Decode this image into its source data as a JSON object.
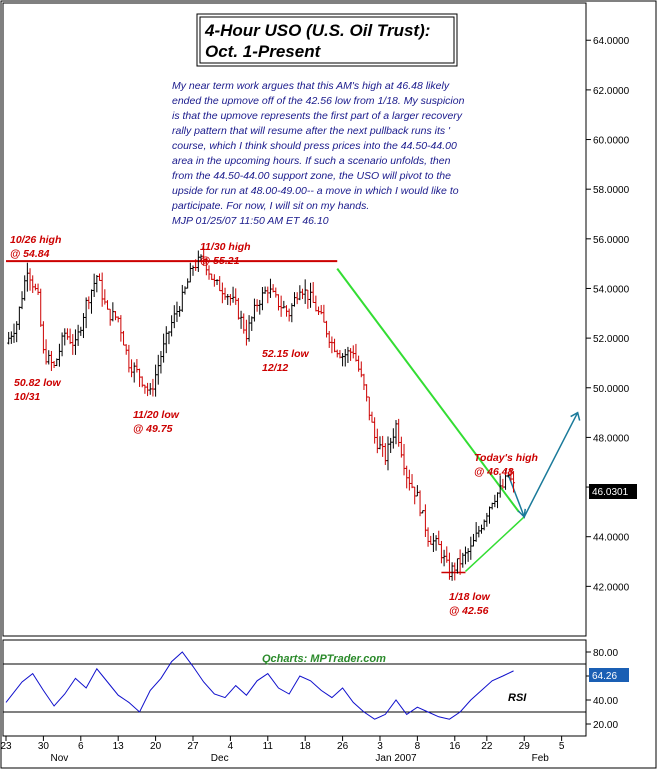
{
  "title": {
    "line1": "4-Hour USO (U.S. Oil Trust):",
    "line2": "Oct. 1-Present"
  },
  "commentary": [
    "My near term work argues that this AM's high at 46.48 likely",
    "ended the upmove off of the 42.56 low from 1/18.  My suspicion",
    "is that the upmove represents the first part of a larger recovery",
    "rally pattern that will resume after the next pullback runs its '",
    "course, which I think should press prices into the 44.50-44.00",
    "area in the upcoming hours. If such a scenario unfolds, then",
    "from the 44.50-44.00 support zone, the USO will pivot to the",
    "upside for run at 48.00-49.00-- a move in which I would like to",
    "participate.  For now, I will sit on my hands.",
    "MJP  01/25/07 11:50 AM ET  46.10"
  ],
  "annotations": [
    {
      "id": "oct26",
      "line1": "10/26 high",
      "line2": "@ 54.84"
    },
    {
      "id": "oct31",
      "line1": "50.82 low",
      "line2": "10/31"
    },
    {
      "id": "nov20",
      "line1": "11/20 low",
      "line2": "@ 49.75"
    },
    {
      "id": "nov30",
      "line1": "11/30 high",
      "line2": "@ 55.21"
    },
    {
      "id": "dec12",
      "line1": "52.15 low",
      "line2": "12/12"
    },
    {
      "id": "today",
      "line1": "Today's high",
      "line2": "@ 46.48"
    },
    {
      "id": "jan18",
      "line1": "1/18 low",
      "line2": "@ 42.56"
    }
  ],
  "credit": "Qcharts: MPTrader.com",
  "last_price": "46.0301",
  "rsi_label": "RSI",
  "rsi_value": "64.26",
  "colors": {
    "up_bar": "#000000",
    "down_bar": "#cc0000",
    "resistance": "#cc0000",
    "trendline": "#33dd33",
    "projection": "#1a7a9a",
    "rsi_line": "#1010cc",
    "badge_bg": "#000000",
    "rsi_badge_bg": "#1a5fb4"
  },
  "chart_data": [
    {
      "type": "ohlc",
      "ylim": [
        40.0,
        65.5
      ],
      "yticks": [
        "42.0000",
        "44.0000",
        "46.0000",
        "48.0000",
        "50.0000",
        "52.0000",
        "54.0000",
        "56.0000",
        "58.0000",
        "60.0000",
        "62.0000",
        "64.0000"
      ],
      "yticks_num": [
        42,
        44,
        46,
        48,
        50,
        52,
        54,
        56,
        58,
        60,
        62,
        64
      ],
      "xticks": [
        {
          "label": "23",
          "day": 0
        },
        {
          "label": "30",
          "day": 7
        },
        {
          "label": "6",
          "day": 14
        },
        {
          "label": "13",
          "day": 21
        },
        {
          "label": "20",
          "day": 28
        },
        {
          "label": "27",
          "day": 35
        },
        {
          "label": "4",
          "day": 42
        },
        {
          "label": "11",
          "day": 49
        },
        {
          "label": "18",
          "day": 56
        },
        {
          "label": "26",
          "day": 63
        },
        {
          "label": "3",
          "day": 70
        },
        {
          "label": "8",
          "day": 77
        },
        {
          "label": "16",
          "day": 84
        },
        {
          "label": "22",
          "day": 90
        },
        {
          "label": "29",
          "day": 97
        },
        {
          "label": "5",
          "day": 104
        }
      ],
      "months": [
        {
          "label": "Nov",
          "day": 10
        },
        {
          "label": "Dec",
          "day": 40
        },
        {
          "label": "Jan 2007",
          "day": 73
        },
        {
          "label": "Feb",
          "day": 100
        }
      ],
      "xlim": [
        0,
        108
      ],
      "price_path": [
        [
          0,
          51.8
        ],
        [
          2,
          52.6
        ],
        [
          4,
          54.84
        ],
        [
          6,
          53.6
        ],
        [
          7,
          51.4
        ],
        [
          9,
          50.82
        ],
        [
          11,
          52.2
        ],
        [
          13,
          51.7
        ],
        [
          15,
          53.4
        ],
        [
          17,
          54.5
        ],
        [
          19,
          53.0
        ],
        [
          21,
          52.8
        ],
        [
          23,
          51.0
        ],
        [
          25,
          50.5
        ],
        [
          27,
          49.75
        ],
        [
          29,
          51.3
        ],
        [
          31,
          52.6
        ],
        [
          33,
          53.6
        ],
        [
          35,
          54.9
        ],
        [
          37,
          55.21
        ],
        [
          39,
          54.2
        ],
        [
          41,
          53.9
        ],
        [
          43,
          53.3
        ],
        [
          45,
          52.15
        ],
        [
          47,
          53.4
        ],
        [
          49,
          54.0
        ],
        [
          51,
          53.4
        ],
        [
          53,
          53.0
        ],
        [
          55,
          54.1
        ],
        [
          57,
          53.6
        ],
        [
          59,
          52.8
        ],
        [
          61,
          51.8
        ],
        [
          63,
          51.3
        ],
        [
          65,
          51.5
        ],
        [
          67,
          50.0
        ],
        [
          69,
          48.0
        ],
        [
          71,
          47.2
        ],
        [
          73,
          48.5
        ],
        [
          75,
          46.5
        ],
        [
          77,
          45.6
        ],
        [
          79,
          44.0
        ],
        [
          81,
          43.6
        ],
        [
          83,
          42.56
        ],
        [
          85,
          43.0
        ],
        [
          87,
          43.5
        ],
        [
          89,
          44.5
        ],
        [
          91,
          45.5
        ],
        [
          93,
          46.0
        ],
        [
          94,
          46.48
        ],
        [
          95,
          46.03
        ]
      ],
      "resistance_line": {
        "x0": 0,
        "x1": 62,
        "y": 55.1
      },
      "trendline": {
        "x0": 62,
        "y0": 54.8,
        "x1": 96,
        "y1": 45.0
      },
      "support_trend": {
        "x0": 86,
        "y0": 42.6,
        "x1": 97,
        "y1": 44.8
      },
      "projection": [
        [
          94,
          46.5
        ],
        [
          97,
          44.8
        ],
        [
          107,
          49.0
        ]
      ]
    },
    {
      "type": "line",
      "name": "RSI",
      "ylim": [
        10,
        90
      ],
      "yticks": [
        "20.00",
        "40.00",
        "60.00",
        "80.00"
      ],
      "yticks_num": [
        20,
        40,
        60,
        80
      ],
      "hlines": [
        30,
        70
      ],
      "x": [
        0,
        3,
        5,
        7,
        9,
        11,
        13,
        15,
        17,
        19,
        21,
        23,
        25,
        27,
        29,
        31,
        33,
        35,
        37,
        39,
        41,
        43,
        45,
        47,
        49,
        51,
        53,
        55,
        57,
        59,
        61,
        63,
        65,
        67,
        69,
        71,
        73,
        75,
        77,
        79,
        81,
        83,
        85,
        87,
        89,
        91,
        93,
        95
      ],
      "values": [
        38,
        55,
        62,
        48,
        35,
        45,
        58,
        50,
        66,
        55,
        44,
        38,
        30,
        48,
        58,
        72,
        80,
        68,
        55,
        45,
        42,
        52,
        44,
        56,
        62,
        50,
        45,
        60,
        56,
        48,
        42,
        50,
        38,
        30,
        24,
        28,
        40,
        28,
        34,
        30,
        26,
        24,
        30,
        40,
        48,
        56,
        60,
        64.26
      ]
    }
  ]
}
